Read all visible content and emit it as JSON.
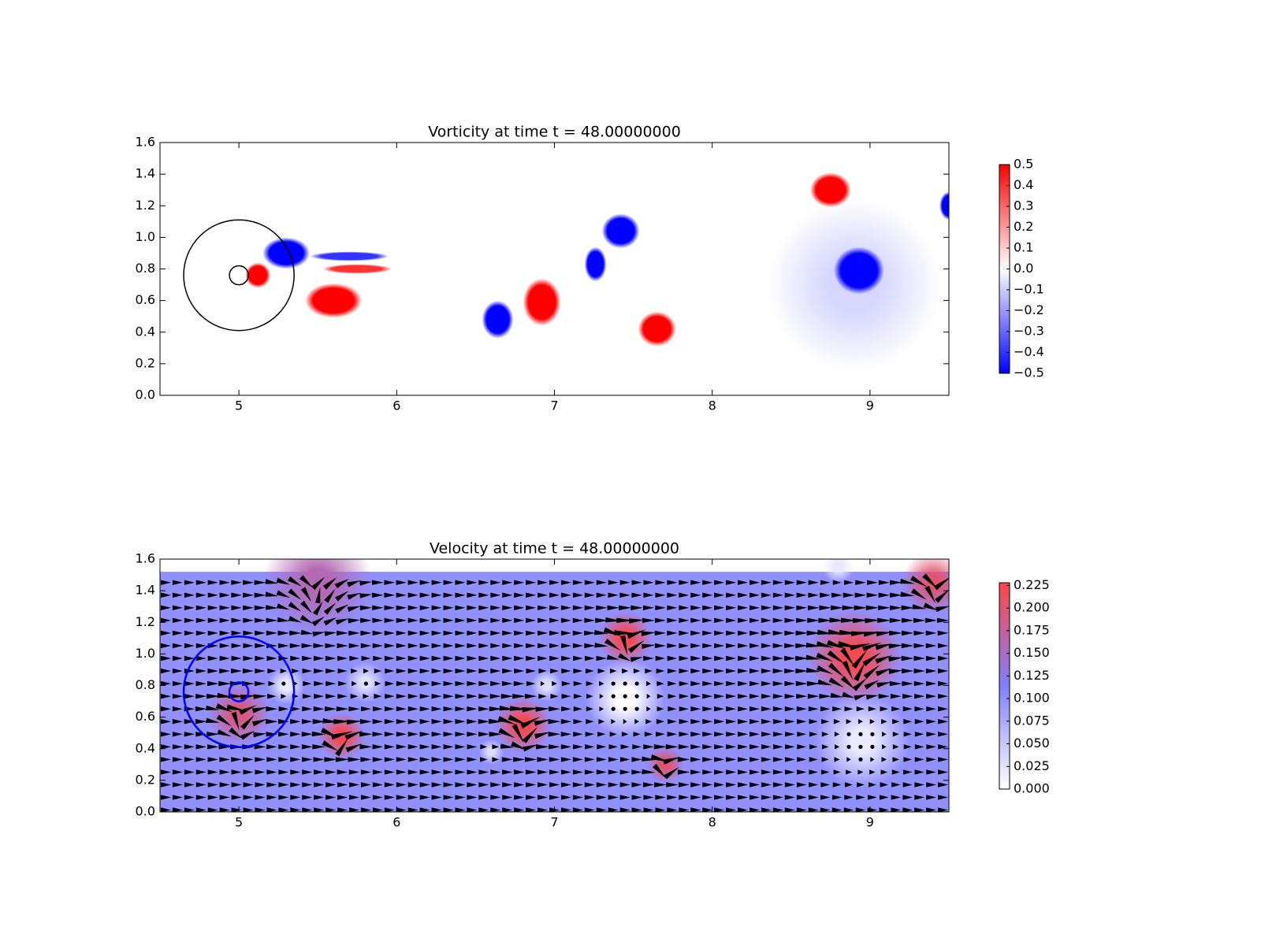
{
  "chart_data": [
    {
      "type": "vorticity",
      "title": "Vorticity at time t =    48.00000000",
      "xlim": [
        4.5,
        9.5
      ],
      "ylim": [
        0,
        1.6
      ],
      "xticks": [
        5,
        6,
        7,
        8,
        9
      ],
      "yticks": [
        {
          "value": 0,
          "label": "0.0"
        },
        0.2,
        0.4,
        0.6,
        0.8,
        {
          "value": 1,
          "label": "1.0"
        },
        1.2,
        1.4,
        1.6
      ],
      "clim": [
        -0.5,
        0.5
      ],
      "colormap": [
        "#0000ff",
        "#ffffff",
        "#ff0000"
      ],
      "cticks": [
        {
          "value": 0.5,
          "label": "0.5"
        },
        {
          "value": 0.4,
          "label": "0.4"
        },
        {
          "value": 0.3,
          "label": "0.3"
        },
        {
          "value": 0.2,
          "label": "0.2"
        },
        {
          "value": 0.1,
          "label": "0.1"
        },
        {
          "value": 0,
          "label": "0.0"
        },
        {
          "value": -0.1,
          "label": "−0.1"
        },
        {
          "value": -0.2,
          "label": "−0.2"
        },
        {
          "value": -0.3,
          "label": "−0.3"
        },
        {
          "value": -0.4,
          "label": "−0.4"
        },
        {
          "value": -0.5,
          "label": "−0.5"
        }
      ],
      "vortices": [
        {
          "x": 8.9,
          "y": 0.7,
          "value": -0.08,
          "rx": 0.55,
          "ry": 0.55
        },
        {
          "x": 6.64,
          "y": 0.48,
          "value": -0.5,
          "rx": 0.1,
          "ry": 0.12
        },
        {
          "x": 6.92,
          "y": 0.59,
          "value": 0.5,
          "rx": 0.12,
          "ry": 0.15
        },
        {
          "x": 7.65,
          "y": 0.42,
          "value": 0.5,
          "rx": 0.12,
          "ry": 0.11
        },
        {
          "x": 7.42,
          "y": 1.04,
          "value": -0.5,
          "rx": 0.12,
          "ry": 0.11
        },
        {
          "x": 7.26,
          "y": 0.83,
          "value": -0.5,
          "rx": 0.07,
          "ry": 0.11
        },
        {
          "x": 8.75,
          "y": 1.3,
          "value": 0.5,
          "rx": 0.13,
          "ry": 0.11
        },
        {
          "x": 8.93,
          "y": 0.79,
          "value": -0.5,
          "rx": 0.16,
          "ry": 0.15
        },
        {
          "x": 9.5,
          "y": 1.2,
          "value": -0.5,
          "rx": 0.06,
          "ry": 0.09
        },
        {
          "x": 5.6,
          "y": 0.6,
          "value": 0.5,
          "rx": 0.18,
          "ry": 0.11
        },
        {
          "x": 5.3,
          "y": 0.9,
          "value": -0.5,
          "rx": 0.15,
          "ry": 0.1
        },
        {
          "x": 5.12,
          "y": 0.76,
          "value": 0.5,
          "rx": 0.08,
          "ry": 0.08
        },
        {
          "x": 5.75,
          "y": 0.8,
          "value": 0.4,
          "rx": 0.22,
          "ry": 0.03
        },
        {
          "x": 5.7,
          "y": 0.88,
          "value": -0.4,
          "rx": 0.25,
          "ry": 0.03
        }
      ],
      "circles": [
        {
          "x": 5,
          "y": 0.76,
          "r": 0.35
        },
        {
          "x": 5,
          "y": 0.76,
          "r": 0.06
        }
      ],
      "circle_color": "#000000"
    },
    {
      "type": "velocity",
      "title": "Velocity at time t =    48.00000000",
      "xlim": [
        4.5,
        9.5
      ],
      "ylim": [
        0,
        1.6
      ],
      "domain_ylim": [
        0,
        1.52
      ],
      "xticks": [
        5,
        6,
        7,
        8,
        9
      ],
      "yticks": [
        {
          "value": 0,
          "label": "0.0"
        },
        0.2,
        0.4,
        0.6,
        0.8,
        {
          "value": 1,
          "label": "1.0"
        },
        1.2,
        1.4,
        1.6
      ],
      "clim": [
        0,
        0.228
      ],
      "colormap": [
        "#ffffff",
        "#8080ff",
        "#ff4646"
      ],
      "cticks": [
        {
          "value": 0.225,
          "label": "0.225"
        },
        {
          "value": 0.2,
          "label": "0.200"
        },
        {
          "value": 0.175,
          "label": "0.175"
        },
        {
          "value": 0.15,
          "label": "0.150"
        },
        {
          "value": 0.125,
          "label": "0.125"
        },
        {
          "value": 0.1,
          "label": "0.100"
        },
        {
          "value": 0.075,
          "label": "0.075"
        },
        {
          "value": 0.05,
          "label": "0.050"
        },
        {
          "value": 0.025,
          "label": "0.025"
        },
        {
          "value": 0,
          "label": "0.000"
        }
      ],
      "base_speed": 0.1,
      "blobs": [
        {
          "x": 5.0,
          "y": 0.62,
          "speed": 0.19,
          "r": 0.2
        },
        {
          "x": 5.65,
          "y": 0.48,
          "speed": 0.22,
          "r": 0.15
        },
        {
          "x": 6.8,
          "y": 0.55,
          "speed": 0.22,
          "r": 0.18
        },
        {
          "x": 7.45,
          "y": 1.1,
          "speed": 0.22,
          "r": 0.17
        },
        {
          "x": 8.9,
          "y": 0.98,
          "speed": 0.22,
          "r": 0.3
        },
        {
          "x": 7.7,
          "y": 0.3,
          "speed": 0.2,
          "r": 0.12
        },
        {
          "x": 5.5,
          "y": 1.45,
          "speed": 0.16,
          "r": 0.35
        },
        {
          "x": 9.4,
          "y": 1.45,
          "speed": 0.2,
          "r": 0.2
        },
        {
          "x": 5.3,
          "y": 0.8,
          "speed": 0.02,
          "r": 0.12
        },
        {
          "x": 5.8,
          "y": 0.82,
          "speed": 0.03,
          "r": 0.13
        },
        {
          "x": 7.45,
          "y": 0.72,
          "speed": 0.0,
          "r": 0.25
        },
        {
          "x": 8.95,
          "y": 0.45,
          "speed": 0.02,
          "r": 0.3
        },
        {
          "x": 6.6,
          "y": 0.38,
          "speed": 0.03,
          "r": 0.08
        },
        {
          "x": 6.95,
          "y": 0.8,
          "speed": 0.03,
          "r": 0.1
        },
        {
          "x": 8.8,
          "y": 1.55,
          "speed": 0.02,
          "r": 0.1
        }
      ],
      "circles": [
        {
          "x": 5,
          "y": 0.76,
          "r": 0.35
        },
        {
          "x": 5,
          "y": 0.76,
          "r": 0.06
        }
      ],
      "circle_color": "#0000ff"
    }
  ]
}
